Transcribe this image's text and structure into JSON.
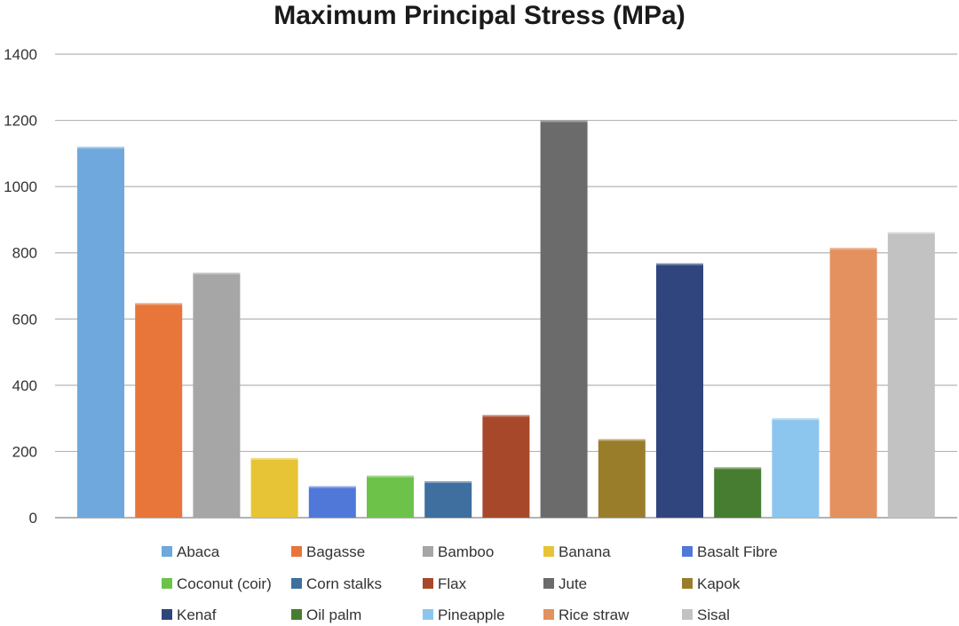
{
  "chart_data": {
    "type": "bar",
    "title": "Maximum Principal Stress (MPa)",
    "xlabel": "",
    "ylabel": "",
    "ylim": [
      0,
      1400
    ],
    "yticks": [
      0,
      200,
      400,
      600,
      800,
      1000,
      1200,
      1400
    ],
    "grid": true,
    "legend_position": "bottom",
    "series": [
      {
        "name": "Abaca",
        "value": 1120,
        "color": "#6fa8dc"
      },
      {
        "name": "Bagasse",
        "value": 648,
        "color": "#e8763a"
      },
      {
        "name": "Bamboo",
        "value": 740,
        "color": "#a6a6a6"
      },
      {
        "name": "Banana",
        "value": 180,
        "color": "#e6c435"
      },
      {
        "name": "Basalt Fibre",
        "value": 95,
        "color": "#4f78d9"
      },
      {
        "name": "Coconut (coir)",
        "value": 127,
        "color": "#6dc34a"
      },
      {
        "name": "Corn stalks",
        "value": 110,
        "color": "#3e6f9e"
      },
      {
        "name": "Flax",
        "value": 310,
        "color": "#a8482a"
      },
      {
        "name": "Jute",
        "value": 1200,
        "color": "#6b6b6b"
      },
      {
        "name": "Kapok",
        "value": 237,
        "color": "#9a7d2a"
      },
      {
        "name": "Kenaf",
        "value": 768,
        "color": "#30457e"
      },
      {
        "name": "Oil palm",
        "value": 152,
        "color": "#467d30"
      },
      {
        "name": "Pineapple",
        "value": 300,
        "color": "#8cc6ee"
      },
      {
        "name": "Rice straw",
        "value": 815,
        "color": "#e4915f"
      },
      {
        "name": "Sisal",
        "value": 862,
        "color": "#c2c2c2"
      }
    ]
  }
}
